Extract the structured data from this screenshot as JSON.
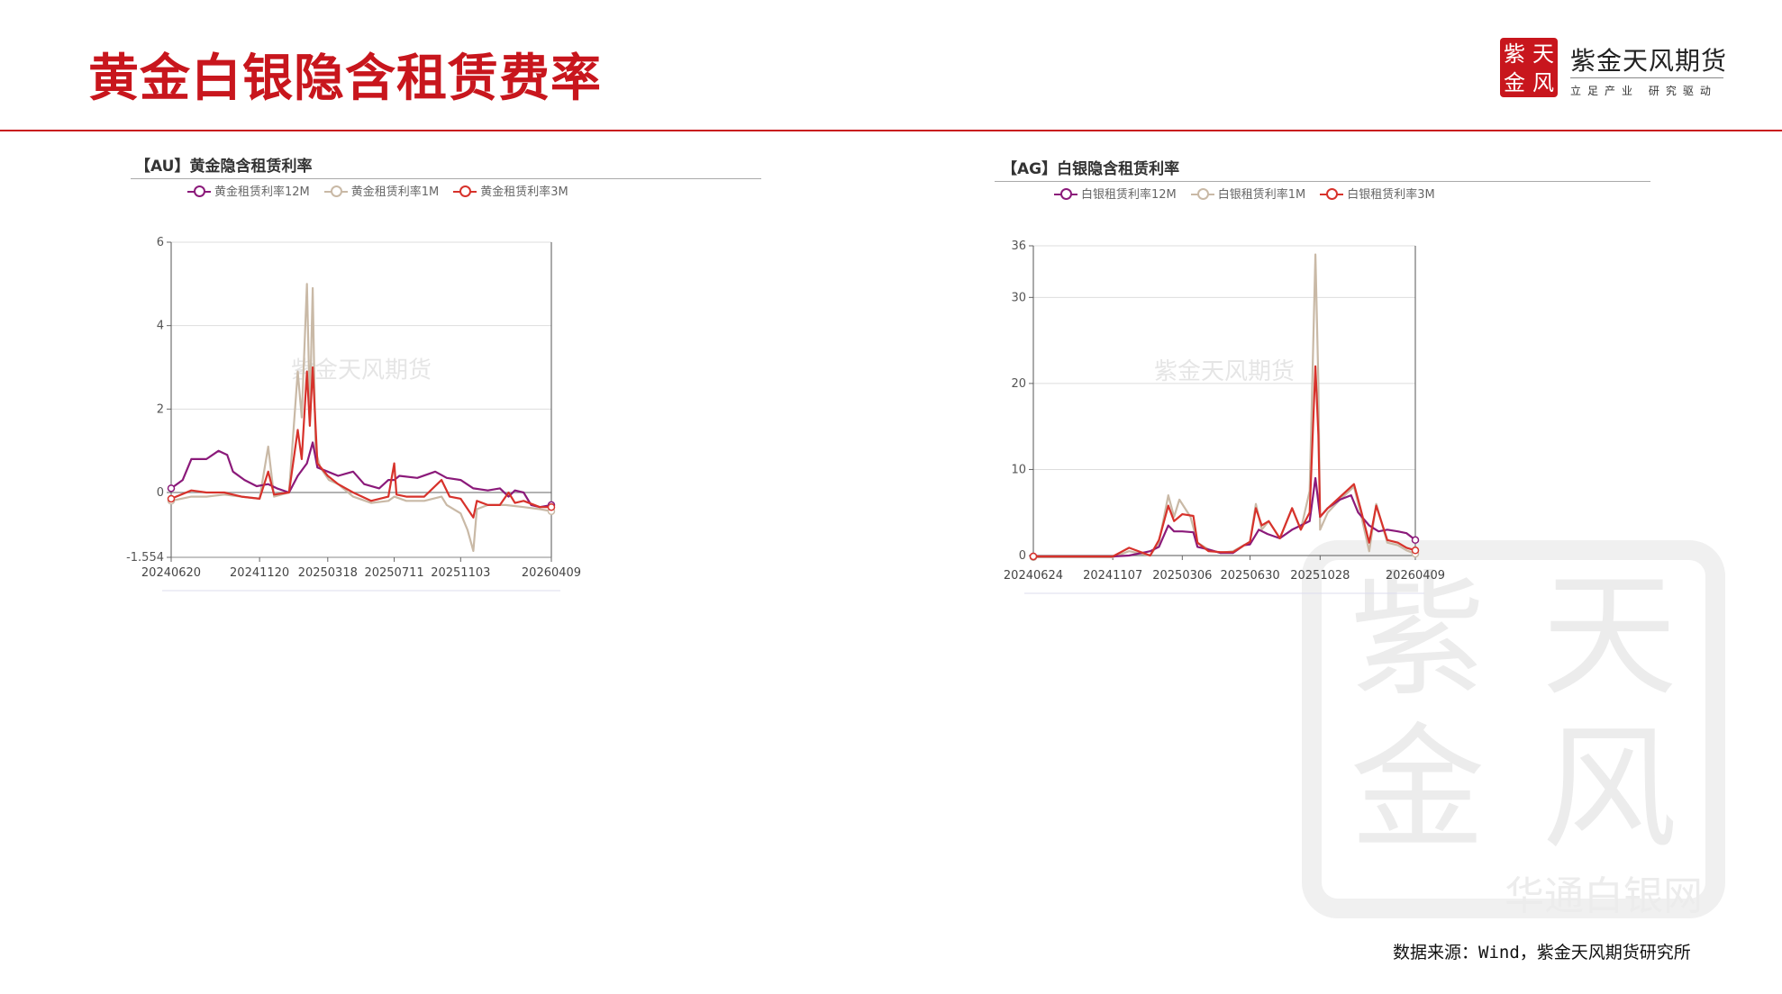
{
  "header": {
    "title": "黄金白银隐含租赁费率",
    "logo": {
      "seal_chars": [
        "紫",
        "天",
        "金",
        "风"
      ],
      "name": "紫金天风期货",
      "slogan": "立足产业 研究驱动"
    },
    "accent_color": "#c8161d"
  },
  "watermark": {
    "chart_text": "紫金天风期货",
    "site": "华通白银网"
  },
  "footer": {
    "source": "数据来源：Wind，紫金天风期货研究所"
  },
  "chart_data": [
    {
      "type": "line",
      "title": "【AU】黄金隐含租赁利率",
      "ylim": [
        -1.554,
        6
      ],
      "yticks": [
        "6",
        "4",
        "2",
        "0",
        "-1.554"
      ],
      "ytick_values": [
        6,
        4,
        2,
        0,
        -1.554
      ],
      "xticks": [
        "20240620",
        "20241120",
        "20250318",
        "20250711",
        "20251103",
        "20260409"
      ],
      "xlim": [
        "20240620",
        "20260409"
      ],
      "grid": true,
      "legend": "top",
      "series": [
        {
          "name": "黄金租赁利率12M",
          "color": "#8b1a7a",
          "points": [
            [
              "20240620",
              0.1
            ],
            [
              "20240710",
              0.3
            ],
            [
              "20240725",
              0.8
            ],
            [
              "20240820",
              0.8
            ],
            [
              "20240910",
              1.0
            ],
            [
              "20240925",
              0.9
            ],
            [
              "20241005",
              0.5
            ],
            [
              "20241025",
              0.3
            ],
            [
              "20241115",
              0.15
            ],
            [
              "20241205",
              0.2
            ],
            [
              "20241220",
              0.1
            ],
            [
              "20250110",
              0.0
            ],
            [
              "20250125",
              0.4
            ],
            [
              "20250210",
              0.7
            ],
            [
              "20250220",
              1.2
            ],
            [
              "20250228",
              0.6
            ],
            [
              "20250318",
              0.5
            ],
            [
              "20250405",
              0.4
            ],
            [
              "20250501",
              0.5
            ],
            [
              "20250520",
              0.2
            ],
            [
              "20250615",
              0.1
            ],
            [
              "20250701",
              0.3
            ],
            [
              "20250711",
              0.3
            ],
            [
              "20250720",
              0.4
            ],
            [
              "20250820",
              0.35
            ],
            [
              "20250920",
              0.5
            ],
            [
              "20251010",
              0.35
            ],
            [
              "20251103",
              0.3
            ],
            [
              "20251125",
              0.1
            ],
            [
              "20251220",
              0.05
            ],
            [
              "20260110",
              0.1
            ],
            [
              "20260125",
              -0.1
            ],
            [
              "20260205",
              0.05
            ],
            [
              "20260220",
              0.0
            ],
            [
              "20260305",
              -0.3
            ],
            [
              "20260320",
              -0.35
            ],
            [
              "20260409",
              -0.3
            ]
          ]
        },
        {
          "name": "黄金租赁利率1M",
          "color": "#c9b9a6",
          "points": [
            [
              "20240620",
              -0.2
            ],
            [
              "20240725",
              -0.1
            ],
            [
              "20240820",
              -0.1
            ],
            [
              "20240920",
              -0.05
            ],
            [
              "20241020",
              -0.1
            ],
            [
              "20241120",
              -0.15
            ],
            [
              "20241205",
              1.1
            ],
            [
              "20241215",
              -0.1
            ],
            [
              "20250110",
              0.0
            ],
            [
              "20250125",
              2.9
            ],
            [
              "20250201",
              1.8
            ],
            [
              "20250210",
              5.0
            ],
            [
              "20250215",
              2.0
            ],
            [
              "20250220",
              4.9
            ],
            [
              "20250225",
              1.0
            ],
            [
              "20250305",
              0.6
            ],
            [
              "20250320",
              0.3
            ],
            [
              "20250405",
              0.2
            ],
            [
              "20250501",
              -0.1
            ],
            [
              "20250601",
              -0.25
            ],
            [
              "20250701",
              -0.2
            ],
            [
              "20250711",
              -0.1
            ],
            [
              "20250801",
              -0.2
            ],
            [
              "20250901",
              -0.2
            ],
            [
              "20251001",
              -0.1
            ],
            [
              "20251010",
              -0.3
            ],
            [
              "20251103",
              -0.5
            ],
            [
              "20251115",
              -0.9
            ],
            [
              "20251125",
              -1.4
            ],
            [
              "20251201",
              -0.4
            ],
            [
              "20251220",
              -0.3
            ],
            [
              "20260120",
              -0.3
            ],
            [
              "20260220",
              -0.35
            ],
            [
              "20260320",
              -0.4
            ],
            [
              "20260409",
              -0.45
            ]
          ]
        },
        {
          "name": "黄金租赁利率3M",
          "color": "#d7322b",
          "points": [
            [
              "20240620",
              -0.15
            ],
            [
              "20240725",
              0.05
            ],
            [
              "20240820",
              0.0
            ],
            [
              "20240920",
              0.0
            ],
            [
              "20241020",
              -0.1
            ],
            [
              "20241120",
              -0.15
            ],
            [
              "20241205",
              0.5
            ],
            [
              "20241215",
              -0.05
            ],
            [
              "20250110",
              0.0
            ],
            [
              "20250125",
              1.5
            ],
            [
              "20250201",
              0.8
            ],
            [
              "20250210",
              2.9
            ],
            [
              "20250215",
              1.6
            ],
            [
              "20250220",
              3.0
            ],
            [
              "20250228",
              0.7
            ],
            [
              "20250318",
              0.4
            ],
            [
              "20250405",
              0.2
            ],
            [
              "20250501",
              0.0
            ],
            [
              "20250601",
              -0.2
            ],
            [
              "20250701",
              -0.1
            ],
            [
              "20250711",
              0.7
            ],
            [
              "20250715",
              -0.05
            ],
            [
              "20250801",
              -0.1
            ],
            [
              "20250901",
              -0.1
            ],
            [
              "20251001",
              0.3
            ],
            [
              "20251015",
              -0.1
            ],
            [
              "20251103",
              -0.15
            ],
            [
              "20251125",
              -0.6
            ],
            [
              "20251201",
              -0.2
            ],
            [
              "20251220",
              -0.3
            ],
            [
              "20260110",
              -0.3
            ],
            [
              "20260125",
              0.0
            ],
            [
              "20260205",
              -0.25
            ],
            [
              "20260220",
              -0.2
            ],
            [
              "20260320",
              -0.35
            ],
            [
              "20260409",
              -0.35
            ]
          ]
        }
      ]
    },
    {
      "type": "line",
      "title": "【AG】白银隐含租赁利率",
      "ylim": [
        0,
        36
      ],
      "yticks": [
        "36",
        "30",
        "20",
        "10",
        "0"
      ],
      "ytick_values": [
        36,
        30,
        20,
        10,
        0
      ],
      "xticks": [
        "20240624",
        "20241107",
        "20250306",
        "20250630",
        "20251028",
        "20260409"
      ],
      "xlim": [
        "20240624",
        "20260409"
      ],
      "grid": true,
      "legend": "top",
      "series": [
        {
          "name": "白银租赁利率12M",
          "color": "#8b1a7a",
          "points": [
            [
              "20240624",
              -0.1
            ],
            [
              "20241107",
              -0.1
            ],
            [
              "20241205",
              0.0
            ],
            [
              "20250110",
              0.5
            ],
            [
              "20250125",
              1.0
            ],
            [
              "20250210",
              3.5
            ],
            [
              "20250220",
              2.8
            ],
            [
              "20250306",
              2.8
            ],
            [
              "20250325",
              2.7
            ],
            [
              "20250401",
              1.0
            ],
            [
              "20250420",
              0.7
            ],
            [
              "20250510",
              0.3
            ],
            [
              "20250601",
              0.3
            ],
            [
              "20250620",
              1.2
            ],
            [
              "20250630",
              1.3
            ],
            [
              "20250715",
              3.0
            ],
            [
              "20250730",
              2.5
            ],
            [
              "20250820",
              2.0
            ],
            [
              "20250910",
              3.0
            ],
            [
              "20250925",
              3.5
            ],
            [
              "20251010",
              4.0
            ],
            [
              "20251020",
              9.0
            ],
            [
              "20251028",
              4.5
            ],
            [
              "20251110",
              5.5
            ],
            [
              "20251201",
              6.5
            ],
            [
              "20251220",
              7.0
            ],
            [
              "20260101",
              5.0
            ],
            [
              "20260120",
              3.5
            ],
            [
              "20260205",
              2.8
            ],
            [
              "20260220",
              3.0
            ],
            [
              "20260310",
              2.8
            ],
            [
              "20260325",
              2.6
            ],
            [
              "20260409",
              1.8
            ]
          ]
        },
        {
          "name": "白银租赁利率1M",
          "color": "#c9b9a6",
          "points": [
            [
              "20240624",
              -0.2
            ],
            [
              "20241107",
              -0.2
            ],
            [
              "20241205",
              0.5
            ],
            [
              "20250110",
              0.0
            ],
            [
              "20250125",
              1.5
            ],
            [
              "20250210",
              7.0
            ],
            [
              "20250220",
              4.5
            ],
            [
              "20250301",
              6.5
            ],
            [
              "20250320",
              4.5
            ],
            [
              "20250401",
              1.5
            ],
            [
              "20250420",
              0.7
            ],
            [
              "20250510",
              0.3
            ],
            [
              "20250601",
              0.5
            ],
            [
              "20250630",
              1.6
            ],
            [
              "20250710",
              6.0
            ],
            [
              "20250720",
              3.0
            ],
            [
              "20250801",
              4.0
            ],
            [
              "20250820",
              2.0
            ],
            [
              "20250910",
              5.5
            ],
            [
              "20250925",
              3.0
            ],
            [
              "20251010",
              7.5
            ],
            [
              "20251020",
              35.0
            ],
            [
              "20251025",
              20.0
            ],
            [
              "20251028",
              3.0
            ],
            [
              "20251110",
              5.0
            ],
            [
              "20251201",
              6.5
            ],
            [
              "20251225",
              8.0
            ],
            [
              "20260105",
              5.0
            ],
            [
              "20260120",
              0.5
            ],
            [
              "20260201",
              6.0
            ],
            [
              "20260220",
              1.5
            ],
            [
              "20260310",
              1.2
            ],
            [
              "20260325",
              0.6
            ],
            [
              "20260409",
              0.2
            ]
          ]
        },
        {
          "name": "白银租赁利率3M",
          "color": "#d7322b",
          "points": [
            [
              "20240624",
              -0.1
            ],
            [
              "20241107",
              -0.1
            ],
            [
              "20241205",
              0.9
            ],
            [
              "20250110",
              0.0
            ],
            [
              "20250125",
              1.8
            ],
            [
              "20250210",
              5.8
            ],
            [
              "20250220",
              4.0
            ],
            [
              "20250306",
              4.8
            ],
            [
              "20250325",
              4.6
            ],
            [
              "20250401",
              1.5
            ],
            [
              "20250420",
              0.5
            ],
            [
              "20250510",
              0.4
            ],
            [
              "20250601",
              0.4
            ],
            [
              "20250630",
              1.6
            ],
            [
              "20250710",
              5.5
            ],
            [
              "20250720",
              3.5
            ],
            [
              "20250801",
              4.0
            ],
            [
              "20250820",
              2.0
            ],
            [
              "20250910",
              5.5
            ],
            [
              "20250925",
              3.0
            ],
            [
              "20251010",
              5.0
            ],
            [
              "20251020",
              22.0
            ],
            [
              "20251025",
              14.0
            ],
            [
              "20251028",
              4.5
            ],
            [
              "20251110",
              5.5
            ],
            [
              "20251201",
              6.8
            ],
            [
              "20251225",
              8.3
            ],
            [
              "20260105",
              5.5
            ],
            [
              "20260120",
              1.5
            ],
            [
              "20260201",
              5.8
            ],
            [
              "20260220",
              1.8
            ],
            [
              "20260310",
              1.5
            ],
            [
              "20260325",
              0.9
            ],
            [
              "20260409",
              0.6
            ]
          ]
        }
      ]
    }
  ]
}
